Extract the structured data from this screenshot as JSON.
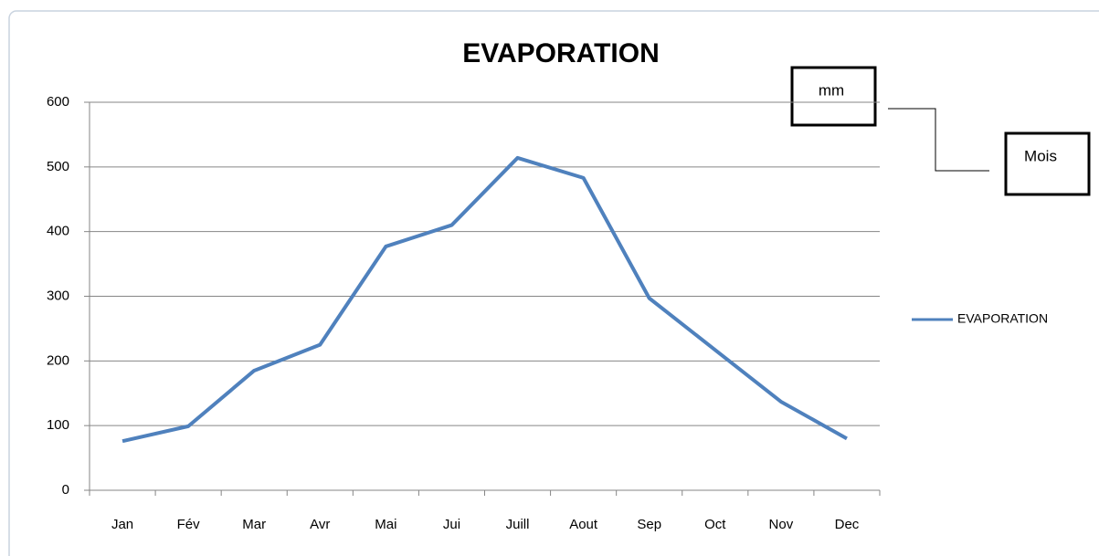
{
  "chart_data": {
    "type": "line",
    "title": "EVAPORATION",
    "categories": [
      "Jan",
      "Fév",
      "Mar",
      "Avr",
      "Mai",
      "Jui",
      "Juill",
      "Aout",
      "Sep",
      "Oct",
      "Nov",
      "Dec"
    ],
    "series": [
      {
        "name": "EVAPORATION",
        "color": "#4f81bd",
        "values": [
          76,
          99,
          185,
          225,
          377,
          410,
          514,
          483,
          297,
          217,
          137,
          80
        ]
      }
    ],
    "ylim": [
      0,
      600
    ],
    "yticks": [
      0,
      100,
      200,
      300,
      400,
      500,
      600
    ],
    "grid": true,
    "legend": "right",
    "annotations": [
      "mm",
      "Mois"
    ]
  }
}
